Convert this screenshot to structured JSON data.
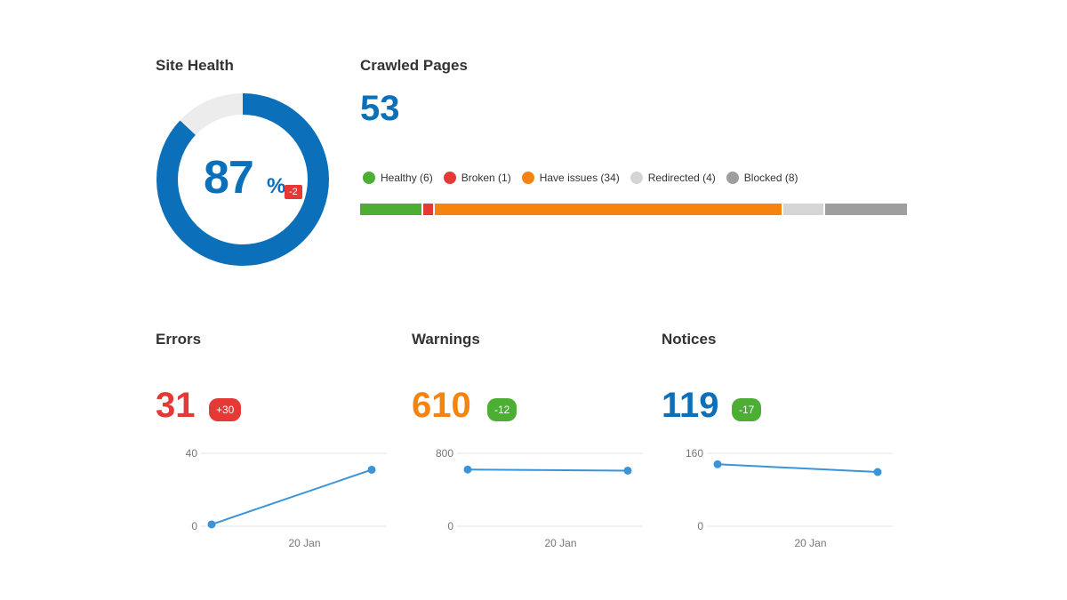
{
  "colors": {
    "accent_blue": "#0b6fba",
    "error_red": "#e53935",
    "warning_orange": "#f5830f",
    "healthy_green": "#4caf34",
    "redirected_gray": "#d5d5d5",
    "blocked_gray": "#9e9e9e",
    "line_blue": "#3b93d8"
  },
  "site_health": {
    "title": "Site Health",
    "value": "87",
    "unit": "%",
    "delta": "-2",
    "percent": 87
  },
  "crawled_pages": {
    "title": "Crawled Pages",
    "count": "53",
    "legend": [
      {
        "label": "Healthy (6)",
        "count": 6,
        "color": "#4caf34"
      },
      {
        "label": "Broken (1)",
        "count": 1,
        "color": "#e53935"
      },
      {
        "label": "Have issues (34)",
        "count": 34,
        "color": "#f5830f"
      },
      {
        "label": "Redirected (4)",
        "count": 4,
        "color": "#d5d5d5"
      },
      {
        "label": "Blocked (8)",
        "count": 8,
        "color": "#9e9e9e"
      }
    ]
  },
  "metrics": [
    {
      "title": "Errors",
      "value": "31",
      "delta": "+30",
      "value_color": "#e53935",
      "delta_color": "#e53935",
      "chart_data": {
        "type": "line",
        "y_ticks": [
          "40",
          "0"
        ],
        "ylim": [
          0,
          40
        ],
        "x_label": "20 Jan",
        "values": [
          1,
          31
        ]
      }
    },
    {
      "title": "Warnings",
      "value": "610",
      "delta": "-12",
      "value_color": "#f5830f",
      "delta_color": "#4caf34",
      "chart_data": {
        "type": "line",
        "y_ticks": [
          "800",
          "0"
        ],
        "ylim": [
          0,
          800
        ],
        "x_label": "20 Jan",
        "values": [
          622,
          610
        ]
      }
    },
    {
      "title": "Notices",
      "value": "119",
      "delta": "-17",
      "value_color": "#0b6fba",
      "delta_color": "#4caf34",
      "chart_data": {
        "type": "line",
        "y_ticks": [
          "160",
          "0"
        ],
        "ylim": [
          0,
          160
        ],
        "x_label": "20 Jan",
        "values": [
          136,
          119
        ]
      }
    }
  ]
}
